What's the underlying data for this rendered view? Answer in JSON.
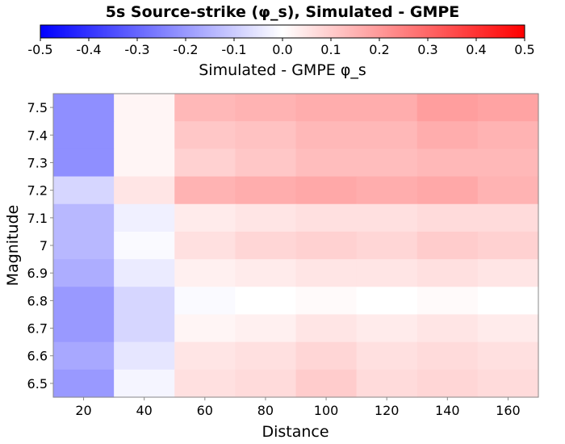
{
  "chart_data": {
    "type": "heatmap",
    "title": "5s Source-strike (φ_s), Simulated - GMPE",
    "colorbar": {
      "label": "Simulated - GMPE φ_s",
      "range": [
        -0.5,
        0.5
      ],
      "ticks": [
        "-0.5",
        "-0.4",
        "-0.3",
        "-0.2",
        "-0.1",
        "0.0",
        "0.1",
        "0.2",
        "0.3",
        "0.4",
        "0.5"
      ],
      "colors": {
        "low": "#0000ff",
        "mid": "#ffffff",
        "high": "#ff0000"
      }
    },
    "xlabel": "Distance",
    "ylabel": "Magnitude",
    "x": [
      20,
      40,
      60,
      80,
      100,
      120,
      140,
      160
    ],
    "x_ticks": [
      "20",
      "40",
      "60",
      "80",
      "100",
      "120",
      "140",
      "160"
    ],
    "y": [
      7.5,
      7.4,
      7.3,
      7.2,
      7.1,
      7.0,
      6.9,
      6.8,
      6.7,
      6.6,
      6.5
    ],
    "y_ticks": [
      "7.5",
      "7.4",
      "7.3",
      "7.2",
      "7.1",
      "7",
      "6.9",
      "6.8",
      "6.7",
      "6.6",
      "6.5"
    ],
    "xlim": [
      10,
      170
    ],
    "ylim": [
      6.45,
      7.55
    ],
    "values": [
      [
        -0.22,
        0.02,
        0.14,
        0.15,
        0.16,
        0.16,
        0.19,
        0.18
      ],
      [
        -0.22,
        0.02,
        0.11,
        0.12,
        0.14,
        0.14,
        0.16,
        0.15
      ],
      [
        -0.22,
        0.02,
        0.09,
        0.11,
        0.13,
        0.13,
        0.14,
        0.14
      ],
      [
        -0.08,
        0.05,
        0.15,
        0.16,
        0.17,
        0.16,
        0.17,
        0.15
      ],
      [
        -0.14,
        -0.03,
        0.04,
        0.05,
        0.06,
        0.06,
        0.07,
        0.07
      ],
      [
        -0.14,
        -0.01,
        0.06,
        0.08,
        0.09,
        0.08,
        0.1,
        0.09
      ],
      [
        -0.16,
        -0.04,
        0.03,
        0.04,
        0.05,
        0.05,
        0.06,
        0.05
      ],
      [
        -0.2,
        -0.08,
        -0.01,
        0.0,
        0.01,
        0.0,
        0.01,
        0.0
      ],
      [
        -0.2,
        -0.08,
        0.02,
        0.03,
        0.05,
        0.04,
        0.05,
        0.04
      ],
      [
        -0.17,
        -0.05,
        0.05,
        0.06,
        0.08,
        0.06,
        0.07,
        0.06
      ],
      [
        -0.2,
        -0.02,
        0.06,
        0.07,
        0.1,
        0.07,
        0.08,
        0.07
      ]
    ]
  }
}
